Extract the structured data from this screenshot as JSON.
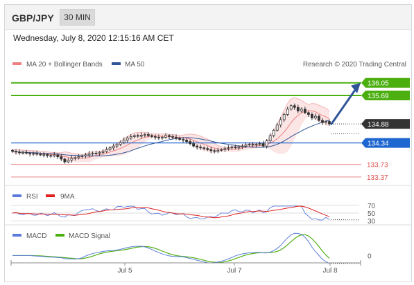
{
  "header": {
    "pair": "GBP/JPY",
    "timeframe": "30 MIN"
  },
  "datetime": "Wednesday, July 8, 2020 12:15:16 AM CET",
  "legend": {
    "bollinger": "MA 20 + Bollinger Bands",
    "ma50": "MA 50",
    "credit": "Research © 2020 Trading Central",
    "rsi": "RSI",
    "rsi_ma": "9MA",
    "macd": "MACD",
    "macd_signal": "MACD Signal"
  },
  "colors": {
    "candle": "#333333",
    "bollinger": "#f08080",
    "ma50": "#2f5597",
    "target": "#4caf10",
    "support": "#1e66d0",
    "resistance_red": "#e05050",
    "arrow": "#2f5597",
    "rsi": "#5b7bdb",
    "rsi_ma": "#e02020",
    "macd": "#5b7bdb",
    "macd_signal": "#4caf10"
  },
  "chart_data": [
    {
      "type": "candlestick",
      "title": "GBP/JPY 30 MIN",
      "x_ticks": [
        "Jul 5",
        "Jul 7",
        "Jul 8"
      ],
      "y_range": [
        133.25,
        136.3
      ],
      "current_price": 134.88,
      "levels": [
        {
          "value": 136.05,
          "label": "136.05",
          "kind": "target"
        },
        {
          "value": 135.69,
          "label": "135.69",
          "kind": "target"
        },
        {
          "value": 134.34,
          "label": "134.34",
          "kind": "pivot"
        },
        {
          "value": 133.73,
          "label": "133.73",
          "kind": "support"
        },
        {
          "value": 133.37,
          "label": "133.37",
          "kind": "support"
        }
      ],
      "close_series": [
        134.1,
        134.08,
        134.06,
        134.07,
        134.05,
        134.03,
        134.04,
        134.02,
        134.0,
        134.01,
        133.98,
        133.97,
        134.0,
        133.95,
        133.88,
        133.8,
        133.85,
        133.9,
        133.92,
        133.95,
        133.97,
        134.0,
        134.03,
        134.05,
        134.04,
        134.07,
        134.1,
        134.15,
        134.2,
        134.25,
        134.3,
        134.35,
        134.42,
        134.48,
        134.52,
        134.55,
        134.53,
        134.56,
        134.58,
        134.55,
        134.52,
        134.5,
        134.48,
        134.5,
        134.55,
        134.52,
        134.5,
        134.47,
        134.44,
        134.42,
        134.38,
        134.32,
        134.25,
        134.22,
        134.2,
        134.18,
        134.15,
        134.12,
        134.1,
        134.13,
        134.15,
        134.18,
        134.2,
        134.22,
        134.2,
        134.23,
        134.25,
        134.28,
        134.3,
        134.28,
        134.3,
        134.32,
        134.25,
        134.4,
        134.55,
        134.7,
        134.85,
        135.0,
        135.15,
        135.3,
        135.4,
        135.35,
        135.25,
        135.3,
        135.2,
        135.15,
        135.05,
        135.1,
        134.98,
        134.92,
        134.95,
        134.88
      ],
      "annotation": {
        "type": "arrow",
        "from": 134.88,
        "to": 136.05
      }
    },
    {
      "type": "line",
      "title": "RSI",
      "series": [
        {
          "name": "RSI"
        },
        {
          "name": "9MA"
        }
      ],
      "levels": [
        70,
        50,
        30
      ]
    },
    {
      "type": "line",
      "title": "MACD",
      "series": [
        {
          "name": "MACD"
        },
        {
          "name": "MACD Signal"
        }
      ],
      "levels": [
        0
      ]
    }
  ]
}
